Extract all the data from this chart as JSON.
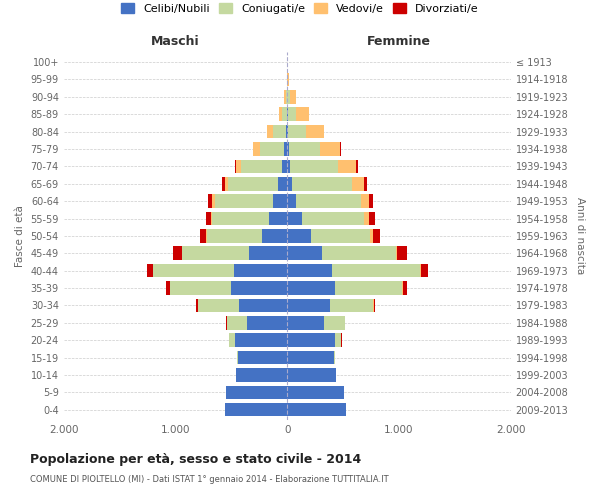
{
  "age_groups": [
    "0-4",
    "5-9",
    "10-14",
    "15-19",
    "20-24",
    "25-29",
    "30-34",
    "35-39",
    "40-44",
    "45-49",
    "50-54",
    "55-59",
    "60-64",
    "65-69",
    "70-74",
    "75-79",
    "80-84",
    "85-89",
    "90-94",
    "95-99",
    "100+"
  ],
  "birth_years": [
    "2009-2013",
    "2004-2008",
    "1999-2003",
    "1994-1998",
    "1989-1993",
    "1984-1988",
    "1979-1983",
    "1974-1978",
    "1969-1973",
    "1964-1968",
    "1959-1963",
    "1954-1958",
    "1949-1953",
    "1944-1948",
    "1939-1943",
    "1934-1938",
    "1929-1933",
    "1924-1928",
    "1919-1923",
    "1914-1918",
    "≤ 1913"
  ],
  "colors": {
    "celibi": "#4472c4",
    "coniugati": "#c5d9a0",
    "vedovi": "#ffc06f",
    "divorziati": "#cc0000"
  },
  "maschi": {
    "celibi": [
      560,
      550,
      460,
      440,
      470,
      360,
      430,
      500,
      480,
      340,
      230,
      160,
      130,
      80,
      50,
      25,
      10,
      4,
      2,
      0,
      0
    ],
    "coniugati": [
      0,
      0,
      0,
      10,
      50,
      180,
      370,
      550,
      720,
      600,
      490,
      510,
      520,
      450,
      360,
      220,
      120,
      40,
      10,
      0,
      0
    ],
    "vedovi": [
      0,
      0,
      0,
      0,
      0,
      0,
      1,
      2,
      3,
      5,
      8,
      10,
      20,
      30,
      50,
      60,
      50,
      30,
      15,
      2,
      0
    ],
    "divorziati": [
      0,
      0,
      0,
      0,
      2,
      5,
      15,
      35,
      55,
      75,
      55,
      50,
      35,
      20,
      10,
      5,
      2,
      0,
      0,
      0,
      0
    ]
  },
  "femmine": {
    "celibi": [
      530,
      510,
      440,
      420,
      430,
      330,
      380,
      430,
      400,
      310,
      210,
      130,
      80,
      45,
      25,
      15,
      8,
      4,
      2,
      0,
      0
    ],
    "coniugati": [
      0,
      0,
      0,
      10,
      55,
      185,
      390,
      600,
      790,
      660,
      530,
      560,
      580,
      530,
      430,
      280,
      160,
      70,
      20,
      2,
      0
    ],
    "vedovi": [
      0,
      0,
      0,
      0,
      0,
      1,
      2,
      5,
      8,
      15,
      25,
      40,
      70,
      110,
      160,
      180,
      160,
      120,
      60,
      10,
      2
    ],
    "divorziati": [
      0,
      0,
      0,
      0,
      2,
      5,
      15,
      40,
      65,
      85,
      65,
      55,
      40,
      25,
      15,
      8,
      4,
      2,
      0,
      0,
      0
    ]
  },
  "title": "Popolazione per età, sesso e stato civile - 2014",
  "subtitle": "COMUNE DI PIOLTELLO (MI) - Dati ISTAT 1° gennaio 2014 - Elaborazione TUTTITALIA.IT",
  "ylabel_left": "Fasce di età",
  "ylabel_right": "Anni di nascita",
  "xlabel_left": "Maschi",
  "xlabel_right": "Femmine",
  "xlim": 2000,
  "background_color": "#ffffff",
  "grid_color": "#cccccc"
}
